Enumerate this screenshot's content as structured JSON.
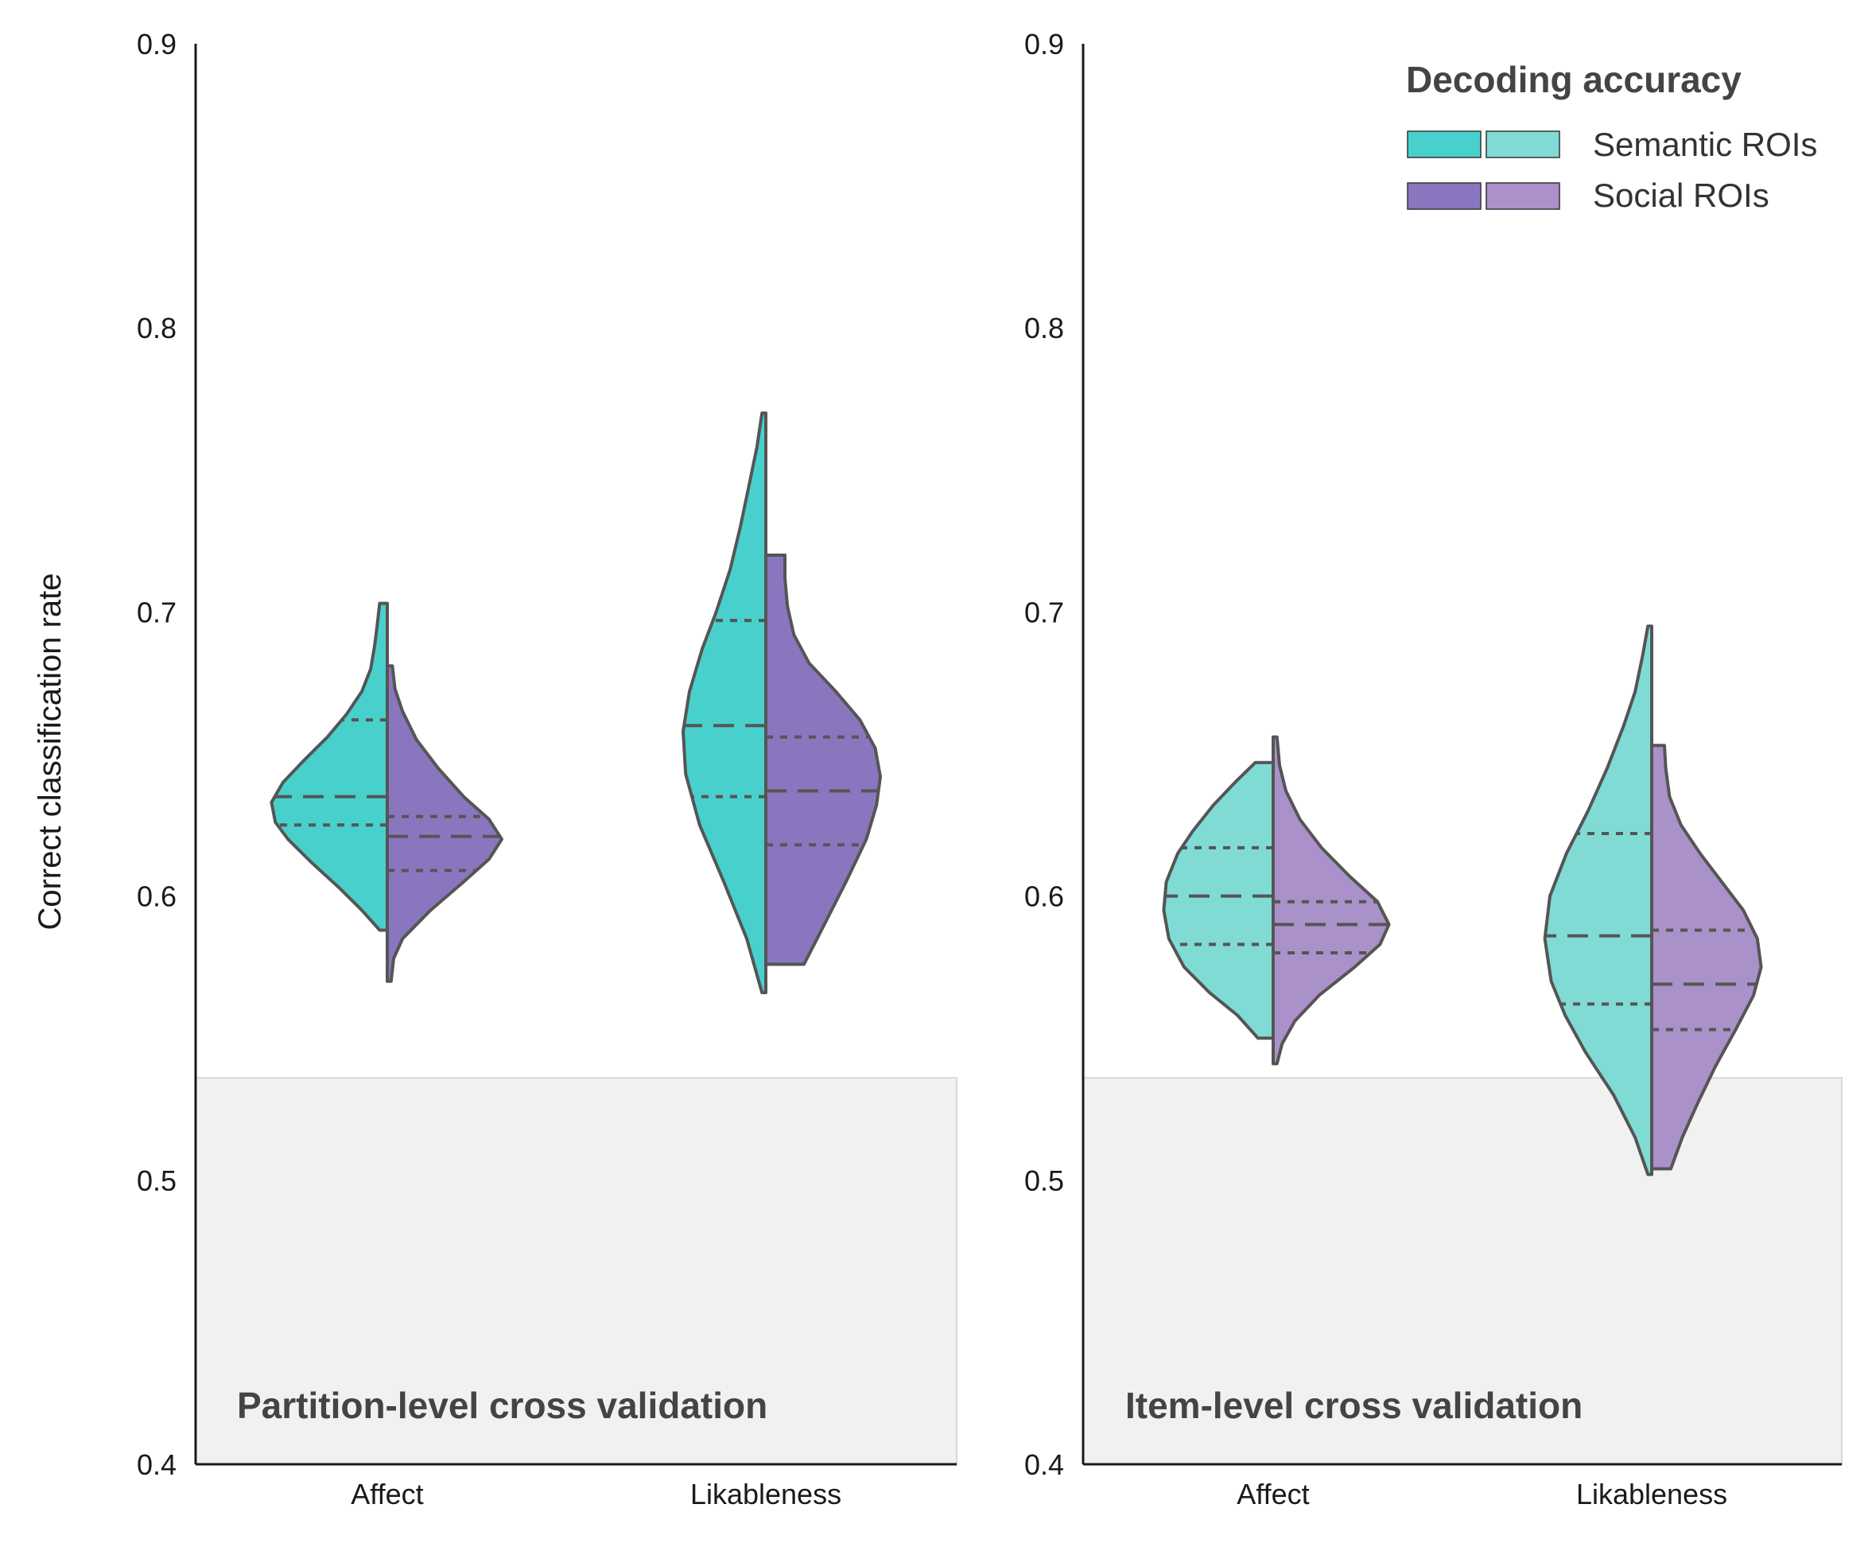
{
  "chart_data": [
    {
      "type": "violin",
      "title": "Partition-level cross validation",
      "xlabel": "",
      "ylabel": "Correct classification rate",
      "categories": [
        "Affect",
        "Likableness"
      ],
      "ylim": [
        0.4,
        0.9
      ],
      "yticks": [
        "0.4",
        "0.5",
        "0.6",
        "0.7",
        "0.8",
        "0.9"
      ],
      "chance_band": [
        0.4,
        0.536
      ],
      "series": [
        {
          "name": "Semantic ROIs",
          "color": "#48d1cc",
          "side": "left",
          "violins": [
            {
              "category": "Affect",
              "min": 0.588,
              "max": 0.703,
              "q1": 0.625,
              "median": 0.635,
              "q3": 0.662,
              "profile": [
                [
                  0.588,
                  0.06
                ],
                [
                  0.595,
                  0.2
                ],
                [
                  0.603,
                  0.38
                ],
                [
                  0.612,
                  0.6
                ],
                [
                  0.62,
                  0.78
                ],
                [
                  0.626,
                  0.88
                ],
                [
                  0.633,
                  0.91
                ],
                [
                  0.64,
                  0.82
                ],
                [
                  0.648,
                  0.65
                ],
                [
                  0.656,
                  0.47
                ],
                [
                  0.664,
                  0.32
                ],
                [
                  0.672,
                  0.2
                ],
                [
                  0.68,
                  0.13
                ],
                [
                  0.688,
                  0.1
                ],
                [
                  0.695,
                  0.08
                ],
                [
                  0.703,
                  0.06
                ]
              ]
            },
            {
              "category": "Likableness",
              "min": 0.566,
              "max": 0.77,
              "q1": 0.635,
              "median": 0.66,
              "q3": 0.697,
              "profile": [
                [
                  0.566,
                  0.03
                ],
                [
                  0.585,
                  0.15
                ],
                [
                  0.605,
                  0.33
                ],
                [
                  0.625,
                  0.52
                ],
                [
                  0.643,
                  0.63
                ],
                [
                  0.658,
                  0.65
                ],
                [
                  0.672,
                  0.6
                ],
                [
                  0.687,
                  0.5
                ],
                [
                  0.7,
                  0.39
                ],
                [
                  0.715,
                  0.28
                ],
                [
                  0.73,
                  0.2
                ],
                [
                  0.745,
                  0.13
                ],
                [
                  0.758,
                  0.07
                ],
                [
                  0.77,
                  0.03
                ]
              ]
            }
          ]
        },
        {
          "name": "Social ROIs",
          "color": "#8a76be",
          "side": "right",
          "violins": [
            {
              "category": "Affect",
              "min": 0.57,
              "max": 0.681,
              "q1": 0.609,
              "median": 0.621,
              "q3": 0.628,
              "profile": [
                [
                  0.57,
                  0.03
                ],
                [
                  0.578,
                  0.05
                ],
                [
                  0.585,
                  0.12
                ],
                [
                  0.595,
                  0.34
                ],
                [
                  0.605,
                  0.6
                ],
                [
                  0.613,
                  0.8
                ],
                [
                  0.62,
                  0.9
                ],
                [
                  0.627,
                  0.8
                ],
                [
                  0.635,
                  0.6
                ],
                [
                  0.645,
                  0.4
                ],
                [
                  0.655,
                  0.23
                ],
                [
                  0.665,
                  0.12
                ],
                [
                  0.673,
                  0.06
                ],
                [
                  0.681,
                  0.04
                ]
              ]
            },
            {
              "category": "Likableness",
              "min": 0.576,
              "max": 0.72,
              "q1": 0.618,
              "median": 0.637,
              "q3": 0.656,
              "profile": [
                [
                  0.576,
                  0.3
                ],
                [
                  0.59,
                  0.46
                ],
                [
                  0.605,
                  0.63
                ],
                [
                  0.62,
                  0.79
                ],
                [
                  0.632,
                  0.87
                ],
                [
                  0.642,
                  0.9
                ],
                [
                  0.652,
                  0.86
                ],
                [
                  0.662,
                  0.74
                ],
                [
                  0.672,
                  0.55
                ],
                [
                  0.682,
                  0.34
                ],
                [
                  0.692,
                  0.22
                ],
                [
                  0.702,
                  0.17
                ],
                [
                  0.712,
                  0.15
                ],
                [
                  0.72,
                  0.15
                ]
              ]
            }
          ]
        }
      ]
    },
    {
      "type": "violin",
      "title": "Item-level cross validation",
      "xlabel": "",
      "ylabel": "",
      "categories": [
        "Affect",
        "Likableness"
      ],
      "ylim": [
        0.4,
        0.9
      ],
      "yticks": [
        "0.4",
        "0.5",
        "0.6",
        "0.7",
        "0.8",
        "0.9"
      ],
      "chance_band": [
        0.4,
        0.536
      ],
      "series": [
        {
          "name": "Semantic ROIs",
          "color": "#80dbd5",
          "side": "left",
          "violins": [
            {
              "category": "Affect",
              "min": 0.55,
              "max": 0.647,
              "q1": 0.583,
              "median": 0.6,
              "q3": 0.617,
              "profile": [
                [
                  0.55,
                  0.12
                ],
                [
                  0.558,
                  0.28
                ],
                [
                  0.566,
                  0.5
                ],
                [
                  0.575,
                  0.7
                ],
                [
                  0.585,
                  0.82
                ],
                [
                  0.595,
                  0.86
                ],
                [
                  0.605,
                  0.84
                ],
                [
                  0.615,
                  0.75
                ],
                [
                  0.623,
                  0.63
                ],
                [
                  0.632,
                  0.47
                ],
                [
                  0.64,
                  0.3
                ],
                [
                  0.647,
                  0.14
                ]
              ]
            },
            {
              "category": "Likableness",
              "min": 0.502,
              "max": 0.695,
              "q1": 0.562,
              "median": 0.586,
              "q3": 0.622,
              "profile": [
                [
                  0.502,
                  0.03
                ],
                [
                  0.515,
                  0.13
                ],
                [
                  0.53,
                  0.3
                ],
                [
                  0.545,
                  0.52
                ],
                [
                  0.558,
                  0.68
                ],
                [
                  0.57,
                  0.79
                ],
                [
                  0.585,
                  0.84
                ],
                [
                  0.6,
                  0.8
                ],
                [
                  0.615,
                  0.67
                ],
                [
                  0.63,
                  0.5
                ],
                [
                  0.645,
                  0.35
                ],
                [
                  0.66,
                  0.22
                ],
                [
                  0.672,
                  0.13
                ],
                [
                  0.685,
                  0.07
                ],
                [
                  0.695,
                  0.03
                ]
              ]
            }
          ]
        },
        {
          "name": "Social ROIs",
          "color": "#ab91c9",
          "side": "right",
          "violins": [
            {
              "category": "Affect",
              "min": 0.541,
              "max": 0.656,
              "q1": 0.58,
              "median": 0.59,
              "q3": 0.598,
              "profile": [
                [
                  0.541,
                  0.03
                ],
                [
                  0.548,
                  0.07
                ],
                [
                  0.556,
                  0.17
                ],
                [
                  0.565,
                  0.36
                ],
                [
                  0.575,
                  0.64
                ],
                [
                  0.583,
                  0.84
                ],
                [
                  0.59,
                  0.91
                ],
                [
                  0.598,
                  0.82
                ],
                [
                  0.607,
                  0.6
                ],
                [
                  0.617,
                  0.38
                ],
                [
                  0.627,
                  0.21
                ],
                [
                  0.637,
                  0.1
                ],
                [
                  0.646,
                  0.05
                ],
                [
                  0.656,
                  0.03
                ]
              ]
            },
            {
              "category": "Likableness",
              "min": 0.504,
              "max": 0.653,
              "q1": 0.553,
              "median": 0.569,
              "q3": 0.588,
              "profile": [
                [
                  0.504,
                  0.15
                ],
                [
                  0.515,
                  0.24
                ],
                [
                  0.527,
                  0.36
                ],
                [
                  0.54,
                  0.5
                ],
                [
                  0.553,
                  0.66
                ],
                [
                  0.565,
                  0.8
                ],
                [
                  0.575,
                  0.86
                ],
                [
                  0.585,
                  0.83
                ],
                [
                  0.595,
                  0.72
                ],
                [
                  0.605,
                  0.55
                ],
                [
                  0.615,
                  0.38
                ],
                [
                  0.625,
                  0.23
                ],
                [
                  0.635,
                  0.14
                ],
                [
                  0.645,
                  0.11
                ],
                [
                  0.653,
                  0.1
                ]
              ]
            }
          ]
        }
      ]
    }
  ],
  "legend": {
    "title": "Decoding accuracy",
    "entries": [
      {
        "label": "Semantic ROIs",
        "colors": [
          "#48d1cc",
          "#80dbd5"
        ]
      },
      {
        "label": "Social ROIs",
        "colors": [
          "#8a76be",
          "#ab91c9"
        ]
      }
    ]
  }
}
